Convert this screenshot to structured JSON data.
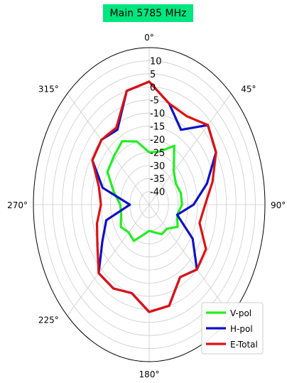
{
  "chart_data": {
    "type": "polar-line",
    "title": "Main 5785 MHz",
    "angle_unit": "degrees",
    "angle_zero": "top",
    "angle_direction": "clockwise",
    "angle_ticks": [
      0,
      45,
      90,
      135,
      180,
      225,
      270,
      315
    ],
    "angle_tick_labels": [
      "0°",
      "45°",
      "90°",
      "",
      "180°",
      "225°",
      "270°",
      "315°"
    ],
    "radial_range": [
      -45,
      15
    ],
    "radial_ticks": [
      10,
      5,
      0,
      -5,
      -10,
      -15,
      -20,
      -25,
      -30,
      -35,
      -40
    ],
    "radial_tick_labels": [
      "10",
      "5",
      "0",
      "-5",
      "-10",
      "-15",
      "-20",
      "-25",
      "-30",
      "-35",
      "-40"
    ],
    "grid": true,
    "legend_position": "bottom-right",
    "angles": [
      0,
      15,
      30,
      45,
      60,
      75,
      90,
      105,
      120,
      135,
      150,
      165,
      180,
      195,
      210,
      225,
      240,
      255,
      270,
      285,
      300,
      315,
      330,
      345
    ],
    "series": [
      {
        "name": "V-pol",
        "color": "#22ee22",
        "values": [
          -25,
          -24,
          -19,
          -27,
          -29,
          -28,
          -28,
          -30,
          -28,
          -32,
          -32,
          -34,
          -35,
          -33,
          -29,
          -30,
          -28,
          -30,
          -30,
          -26,
          -20,
          -19,
          -17,
          -20
        ]
      },
      {
        "name": "H-pol",
        "color": "#1010c8",
        "values": [
          2,
          -5,
          -12,
          -2,
          -5,
          -14,
          -22,
          -30,
          -19,
          -10,
          -13,
          -5,
          -4,
          -10,
          -8,
          -8,
          -17,
          -22,
          -35,
          -20,
          -11,
          -10,
          -12,
          0
        ]
      },
      {
        "name": "E-Total",
        "color": "#dd1111",
        "values": [
          2,
          -5,
          -6,
          -2,
          -5,
          -11,
          -16,
          -18,
          -11,
          -10,
          -13,
          -5,
          -4,
          -10,
          -8,
          -8,
          -14,
          -17,
          -20,
          -18,
          -11,
          -10,
          -11,
          0
        ]
      }
    ]
  }
}
